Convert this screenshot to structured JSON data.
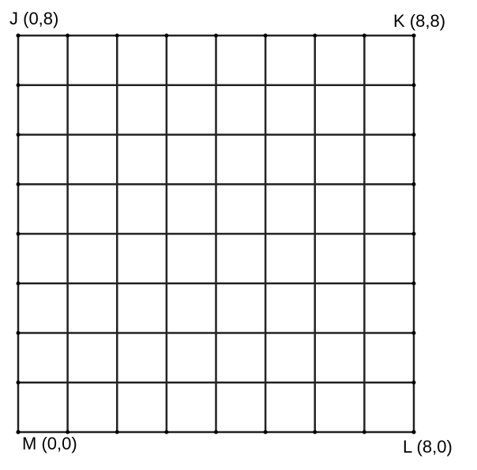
{
  "points": [
    {
      "label": "J (0,8)"
    },
    {
      "label": "K (8,8)"
    },
    {
      "label": "L (8,0)"
    },
    {
      "label": "M (0,0)"
    }
  ]
}
